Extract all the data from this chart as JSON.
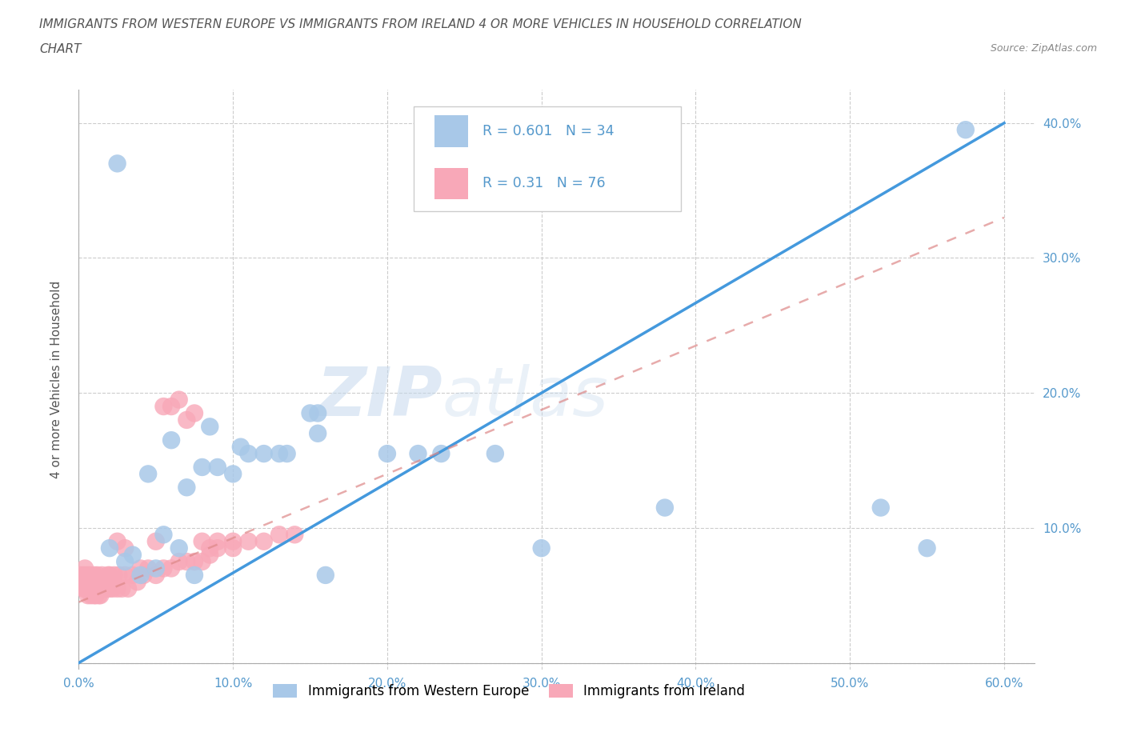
{
  "title_line1": "IMMIGRANTS FROM WESTERN EUROPE VS IMMIGRANTS FROM IRELAND 4 OR MORE VEHICLES IN HOUSEHOLD CORRELATION",
  "title_line2": "CHART",
  "source": "Source: ZipAtlas.com",
  "ylabel": "4 or more Vehicles in Household",
  "legend_label1": "Immigrants from Western Europe",
  "legend_label2": "Immigrants from Ireland",
  "R1": 0.601,
  "N1": 34,
  "R2": 0.31,
  "N2": 76,
  "color1": "#a8c8e8",
  "color2": "#f8a8b8",
  "line1_color": "#4499dd",
  "line2_color": "#dd8888",
  "xlim": [
    0.0,
    0.62
  ],
  "ylim": [
    -0.005,
    0.425
  ],
  "xticks": [
    0.0,
    0.1,
    0.2,
    0.3,
    0.4,
    0.5,
    0.6
  ],
  "yticks": [
    0.0,
    0.1,
    0.2,
    0.3,
    0.4
  ],
  "xticklabels": [
    "0.0%",
    "10.0%",
    "20.0%",
    "30.0%",
    "40.0%",
    "50.0%",
    "60.0%"
  ],
  "yticklabels_right": [
    "",
    "10.0%",
    "20.0%",
    "30.0%",
    "40.0%"
  ],
  "watermark1": "ZIP",
  "watermark2": "atlas",
  "background_color": "#ffffff",
  "grid_color": "#cccccc",
  "title_color": "#555555",
  "tick_color": "#5599cc",
  "axis_label_color": "#555555",
  "scatter1_x": [
    0.02,
    0.025,
    0.03,
    0.035,
    0.04,
    0.045,
    0.05,
    0.055,
    0.06,
    0.065,
    0.07,
    0.075,
    0.08,
    0.085,
    0.09,
    0.1,
    0.105,
    0.11,
    0.12,
    0.13,
    0.135,
    0.15,
    0.155,
    0.155,
    0.16,
    0.2,
    0.22,
    0.235,
    0.27,
    0.3,
    0.38,
    0.52,
    0.55,
    0.575
  ],
  "scatter1_y": [
    0.085,
    0.37,
    0.075,
    0.08,
    0.065,
    0.14,
    0.07,
    0.095,
    0.165,
    0.085,
    0.13,
    0.065,
    0.145,
    0.175,
    0.145,
    0.14,
    0.16,
    0.155,
    0.155,
    0.155,
    0.155,
    0.185,
    0.185,
    0.17,
    0.065,
    0.155,
    0.155,
    0.155,
    0.155,
    0.085,
    0.115,
    0.115,
    0.085,
    0.395
  ],
  "scatter2_x": [
    0.001,
    0.002,
    0.003,
    0.003,
    0.004,
    0.004,
    0.004,
    0.005,
    0.005,
    0.005,
    0.006,
    0.006,
    0.006,
    0.007,
    0.007,
    0.008,
    0.008,
    0.009,
    0.009,
    0.01,
    0.01,
    0.01,
    0.011,
    0.011,
    0.012,
    0.012,
    0.013,
    0.013,
    0.014,
    0.014,
    0.015,
    0.015,
    0.016,
    0.017,
    0.018,
    0.019,
    0.02,
    0.02,
    0.022,
    0.023,
    0.025,
    0.026,
    0.028,
    0.03,
    0.032,
    0.035,
    0.038,
    0.04,
    0.042,
    0.045,
    0.05,
    0.055,
    0.06,
    0.065,
    0.07,
    0.075,
    0.08,
    0.085,
    0.09,
    0.1,
    0.11,
    0.12,
    0.13,
    0.14,
    0.055,
    0.06,
    0.065,
    0.07,
    0.075,
    0.08,
    0.085,
    0.09,
    0.1,
    0.05,
    0.03,
    0.025
  ],
  "scatter2_y": [
    0.065,
    0.06,
    0.055,
    0.065,
    0.055,
    0.06,
    0.07,
    0.055,
    0.06,
    0.065,
    0.05,
    0.055,
    0.06,
    0.055,
    0.065,
    0.05,
    0.055,
    0.055,
    0.06,
    0.05,
    0.055,
    0.065,
    0.05,
    0.06,
    0.055,
    0.065,
    0.05,
    0.055,
    0.05,
    0.06,
    0.055,
    0.065,
    0.055,
    0.06,
    0.055,
    0.065,
    0.055,
    0.065,
    0.055,
    0.065,
    0.055,
    0.065,
    0.055,
    0.065,
    0.055,
    0.065,
    0.06,
    0.07,
    0.065,
    0.07,
    0.065,
    0.07,
    0.07,
    0.075,
    0.075,
    0.075,
    0.075,
    0.08,
    0.085,
    0.09,
    0.09,
    0.09,
    0.095,
    0.095,
    0.19,
    0.19,
    0.195,
    0.18,
    0.185,
    0.09,
    0.085,
    0.09,
    0.085,
    0.09,
    0.085,
    0.09
  ],
  "trendline1_x0": 0.0,
  "trendline1_y0": 0.0,
  "trendline1_x1": 0.6,
  "trendline1_y1": 0.4,
  "trendline2_x0": 0.0,
  "trendline2_y0": 0.045,
  "trendline2_x1": 0.6,
  "trendline2_y1": 0.33
}
